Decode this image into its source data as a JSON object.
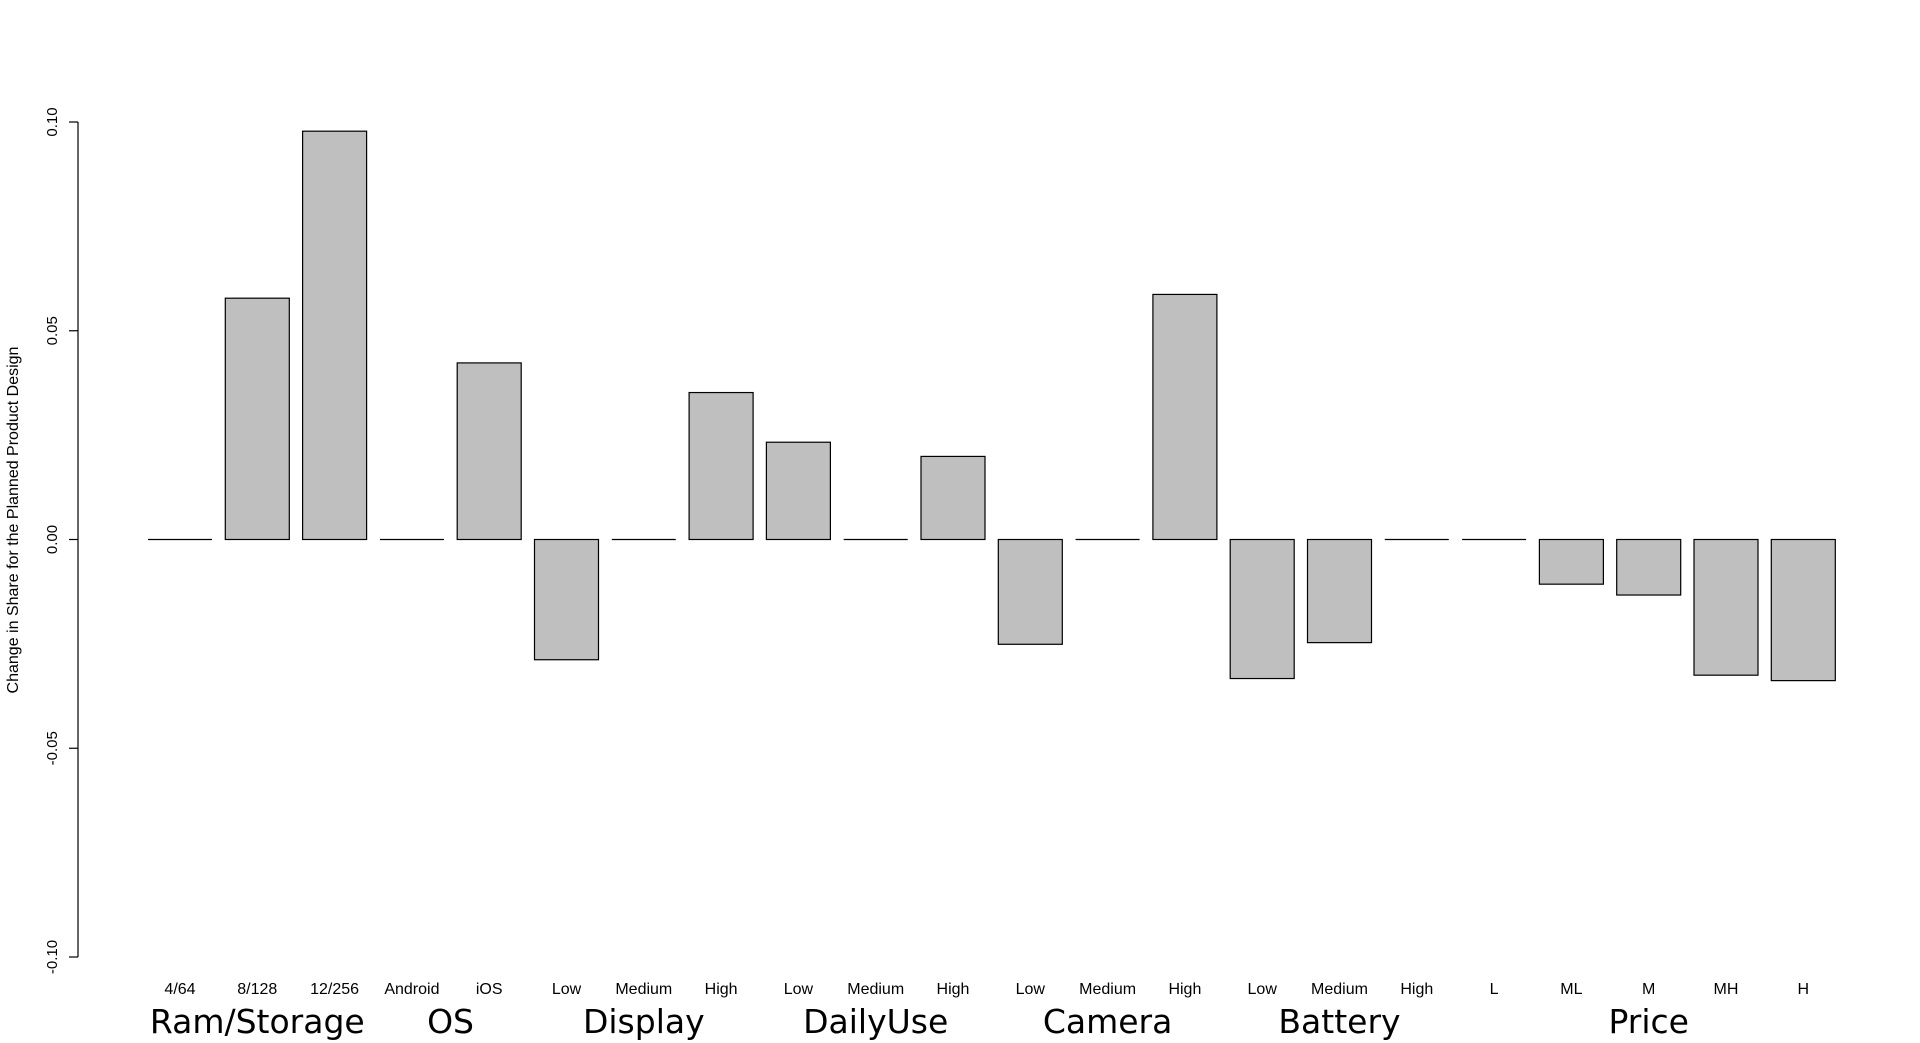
{
  "chart_data": {
    "type": "bar",
    "ylabel": "Change in Share for the Planned Product Design",
    "ylim": [
      -0.1,
      0.1
    ],
    "yticks": [
      "-0.10",
      "-0.05",
      "0.00",
      "0.05",
      "0.10"
    ],
    "grid": false,
    "bar_color": "#bfbfbf",
    "categories": [
      "4/64",
      "8/128",
      "12/256",
      "Android",
      "iOS",
      "Low",
      "Medium",
      "High",
      "Low",
      "Medium",
      "High",
      "Low",
      "Medium",
      "High",
      "Low",
      "Medium",
      "High",
      "L",
      "ML",
      "M",
      "MH",
      "H"
    ],
    "values": [
      0.0,
      0.0578,
      0.0978,
      0.0,
      0.0423,
      -0.0288,
      0.0,
      0.0352,
      0.0233,
      0.0,
      0.0199,
      -0.0251,
      0.0,
      0.0587,
      -0.0333,
      -0.0247,
      0.0,
      0.0,
      -0.0107,
      -0.0133,
      -0.0325,
      -0.0338
    ],
    "groups": [
      {
        "name": "Ram/Storage",
        "start": 0,
        "count": 3
      },
      {
        "name": "OS",
        "start": 3,
        "count": 2
      },
      {
        "name": "Display",
        "start": 5,
        "count": 3
      },
      {
        "name": "DailyUse",
        "start": 8,
        "count": 3
      },
      {
        "name": "Camera",
        "start": 11,
        "count": 3
      },
      {
        "name": "Battery",
        "start": 14,
        "count": 3
      },
      {
        "name": "Price",
        "start": 17,
        "count": 5
      }
    ]
  }
}
